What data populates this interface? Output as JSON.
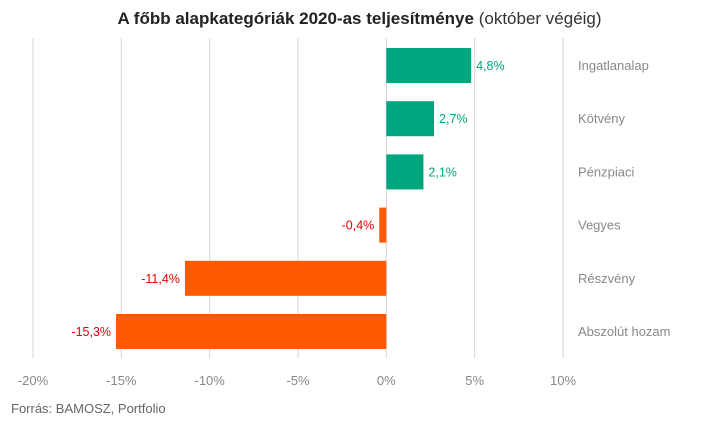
{
  "title": {
    "bold": "A főbb alapkategóriák 2020-as teljesítménye",
    "light": "(október végéig)"
  },
  "source": "Forrás: BAMOSZ, Portfolio",
  "colors": {
    "positive": "#00a67e",
    "negative": "#ff5a00",
    "positive_label": "#00a67e",
    "negative_label": "#e60000",
    "grid": "#d4d4d4",
    "axis_text": "#888888"
  },
  "chart_data": {
    "type": "bar",
    "orientation": "horizontal",
    "categories": [
      "Ingatlanalap",
      "Kötvény",
      "Pénzpiaci",
      "Vegyes",
      "Részvény",
      "Abszolút hozam"
    ],
    "values": [
      4.8,
      2.7,
      2.1,
      -0.4,
      -11.4,
      -15.3
    ],
    "value_labels": [
      "4,8%",
      "2,7%",
      "2,1%",
      "-0,4%",
      "-11,4%",
      "-15,3%"
    ],
    "xlim": [
      -20,
      10
    ],
    "x_ticks": [
      -20,
      -15,
      -10,
      -5,
      0,
      5,
      10
    ],
    "x_tick_labels": [
      "-20%",
      "-15%",
      "-10%",
      "-5%",
      "0%",
      "5%",
      "10%"
    ],
    "grid": true,
    "legend": false
  }
}
